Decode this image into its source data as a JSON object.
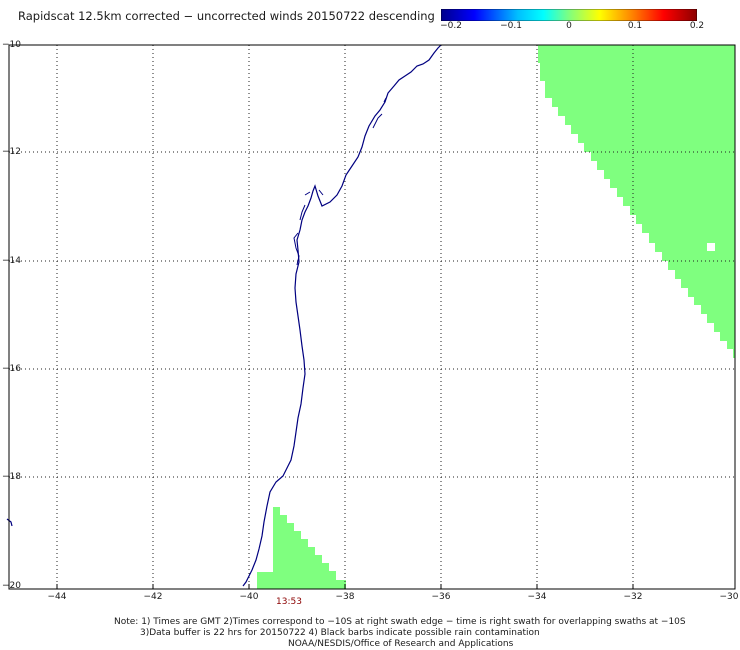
{
  "title": "Rapidscat 12.5km corrected − uncorrected winds 20150722 descending",
  "colorbar": {
    "ticks": [
      "−0.2",
      "−0.1",
      "0",
      "0.1",
      "0.2"
    ],
    "colors": [
      "#00008b",
      "#0000ff",
      "#00bfff",
      "#00ffff",
      "#7fff7f",
      "#ffff00",
      "#ff8000",
      "#ff0000",
      "#8b0000"
    ]
  },
  "map": {
    "lat_labels": [
      "−10",
      "−12",
      "−14",
      "−16",
      "−18",
      "−20"
    ],
    "lon_labels": [
      "−44",
      "−42",
      "−40",
      "−38",
      "−36",
      "−34",
      "−32",
      "−30"
    ],
    "lat_range": [
      -20,
      -10
    ],
    "lon_range": [
      -45,
      -30
    ],
    "swath_time": "13:53",
    "data_color": "#7fff7f",
    "coast_color": "#000080",
    "grid": "dotted"
  },
  "notes": {
    "line1": "Note: 1) Times are GMT 2)Times correspond to −10S at right swath edge − time is right swath for overlapping swaths at −10S",
    "line2": "3)Data buffer is 22 hrs for 20150722 4) Black barbs indicate possible rain contamination",
    "line3": "NOAA/NESDIS/Office of Research and Applications"
  }
}
